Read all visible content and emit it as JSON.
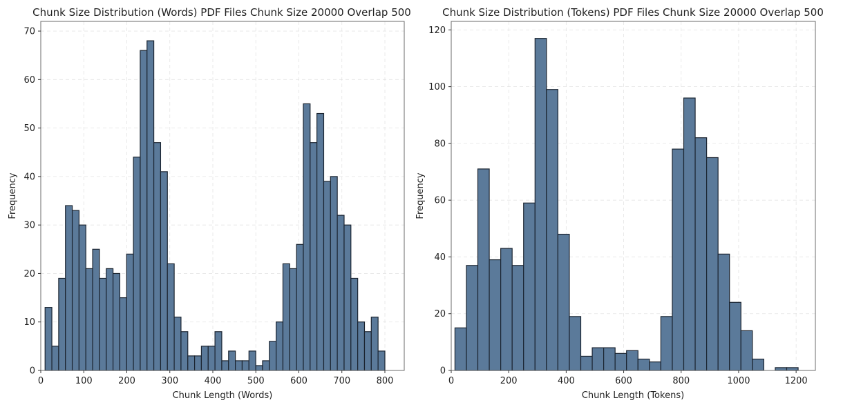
{
  "colors": {
    "bar_fill": "#5b7a9a",
    "bar_edge": "#1b2430"
  },
  "chart_data": [
    {
      "type": "bar",
      "subtype": "histogram",
      "title": "Chunk Size Distribution (Words) PDF Files Chunk Size 20000 Overlap 500",
      "xlabel": "Chunk Length (Words)",
      "ylabel": "Frequency",
      "xlim": [
        0,
        845
      ],
      "ylim": [
        0,
        72
      ],
      "xticks": [
        0,
        100,
        200,
        300,
        400,
        500,
        600,
        700,
        800
      ],
      "yticks": [
        0,
        10,
        20,
        30,
        40,
        50,
        60,
        70
      ],
      "grid": true,
      "bin_start": 10,
      "bin_width": 15.8,
      "values": [
        13,
        5,
        19,
        34,
        33,
        30,
        21,
        25,
        19,
        21,
        20,
        15,
        24,
        44,
        66,
        68,
        47,
        41,
        22,
        11,
        8,
        3,
        3,
        5,
        5,
        8,
        2,
        4,
        2,
        2,
        4,
        1,
        2,
        6,
        10,
        22,
        21,
        26,
        55,
        47,
        53,
        39,
        40,
        32,
        30,
        19,
        10,
        8,
        11,
        4
      ]
    },
    {
      "type": "bar",
      "subtype": "histogram",
      "title": "Chunk Size Distribution (Tokens) PDF Files Chunk Size 20000 Overlap 500",
      "xlabel": "Chunk Length (Tokens)",
      "ylabel": "Frequency",
      "xlim": [
        0,
        1267
      ],
      "ylim": [
        0,
        123
      ],
      "xticks": [
        0,
        200,
        400,
        600,
        800,
        1000,
        1200
      ],
      "yticks": [
        0,
        20,
        40,
        60,
        80,
        100,
        120
      ],
      "grid": true,
      "bin_start": 13,
      "bin_width": 39.8,
      "values": [
        15,
        37,
        71,
        39,
        43,
        37,
        59,
        117,
        99,
        48,
        19,
        5,
        8,
        8,
        6,
        7,
        4,
        3,
        19,
        78,
        96,
        82,
        75,
        41,
        24,
        14,
        4,
        0,
        1,
        1
      ]
    }
  ]
}
